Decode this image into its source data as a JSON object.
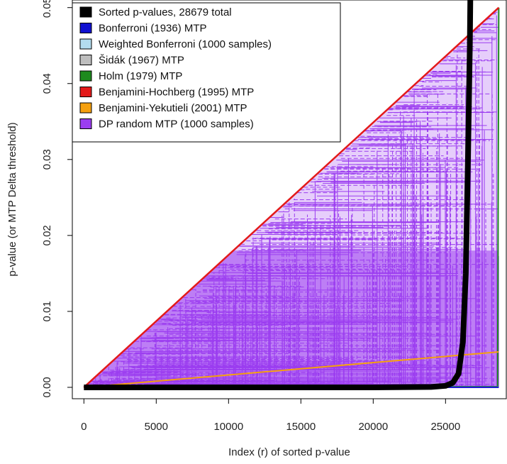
{
  "chart_data": {
    "type": "line",
    "title": "",
    "xlabel": "Index (r) of sorted p-value",
    "ylabel": "p-value   (or MTP Delta threshold)",
    "xlim": [
      -800,
      29200
    ],
    "ylim": [
      -0.0015,
      0.051
    ],
    "xticks": [
      0,
      5000,
      10000,
      15000,
      20000,
      25000
    ],
    "xtick_labels": [
      "0",
      "5000",
      "10000",
      "15000",
      "20000",
      "25000"
    ],
    "yticks": [
      0.0,
      0.01,
      0.02,
      0.03,
      0.04,
      0.05
    ],
    "ytick_labels": [
      "0.00",
      "0.01",
      "0.02",
      "0.03",
      "0.04",
      "0.05"
    ],
    "grid": false,
    "legend_position": "top-left",
    "m_total": 28679,
    "alpha": 0.05,
    "series": [
      {
        "name": "Sorted p-values, 28679 total",
        "color": "#000000",
        "x": [
          0,
          10000,
          20000,
          24000,
          25000,
          25500,
          25900,
          26200,
          26400,
          26550,
          26680,
          26760
        ],
        "y": [
          0.0,
          0.0,
          0.0,
          5e-05,
          0.0002,
          0.0006,
          0.0018,
          0.006,
          0.015,
          0.03,
          0.045,
          0.06
        ]
      },
      {
        "name": "Bonferroni (1936) MTP",
        "color": "#1010d0",
        "x": [
          0,
          28679
        ],
        "y": [
          1.7e-06,
          1.7e-06
        ]
      },
      {
        "name": "Weighted Bonferroni (1000 samples)",
        "color": "#b3dcef",
        "x": [
          0,
          28679
        ],
        "y": [
          1.7e-06,
          1.7e-06
        ]
      },
      {
        "name": "Šidák (1967) MTP",
        "color": "#bebebe",
        "x": [
          0,
          28679
        ],
        "y": [
          1.8e-06,
          1.8e-06
        ]
      },
      {
        "name": "Holm (1979) MTP",
        "color": "#1e8a1e",
        "x": [
          0,
          28600,
          28679
        ],
        "y": [
          1.7e-06,
          0.0001,
          0.05
        ]
      },
      {
        "name": "Benjamini-Hochberg (1995) MTP",
        "color": "#e31a1a",
        "x": [
          0,
          28679
        ],
        "y": [
          0.0,
          0.05
        ]
      },
      {
        "name": "Benjamini-Yekutieli (2001) MTP",
        "color": "#f5a00f",
        "x": [
          0,
          28679
        ],
        "y": [
          0.0,
          0.00467
        ]
      },
      {
        "name": "DP random MTP (1000 samples)",
        "color": "#9b3df0",
        "x": [
          0,
          28679
        ],
        "y": [
          0.0,
          0.05
        ]
      }
    ]
  }
}
